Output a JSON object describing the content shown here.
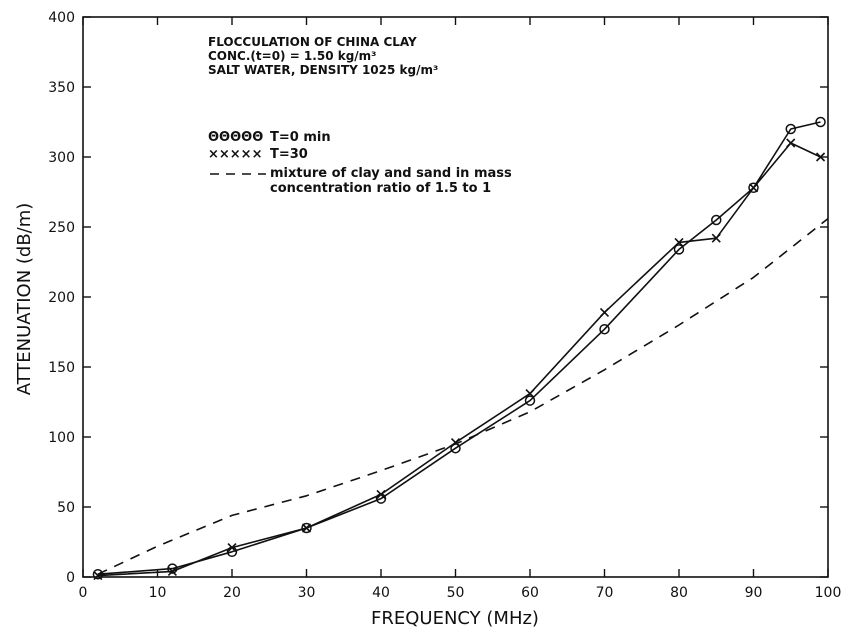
{
  "chart_data": {
    "type": "line",
    "xlabel": "FREQUENCY  (MHz)",
    "ylabel": "ATTENUATION  (dB/m)",
    "xlim": [
      0,
      100
    ],
    "ylim": [
      0,
      400
    ],
    "x_ticks": [
      0,
      10,
      20,
      30,
      40,
      50,
      60,
      70,
      80,
      90,
      100
    ],
    "y_ticks": [
      0,
      50,
      100,
      150,
      200,
      250,
      300,
      350,
      400
    ],
    "grid": false,
    "annotations": [
      "FLOCCULATION OF CHINA CLAY",
      "CONC.(t=0)  =  1.50  kg/m³",
      "SALT WATER, DENSITY 1025 kg/m³"
    ],
    "legend": [
      {
        "symbol": "ΘΘΘΘΘ",
        "label": "T=0    min"
      },
      {
        "symbol": "×××××",
        "label": "T=30"
      },
      {
        "symbol": "— —",
        "label": "mixture of clay and sand in mass",
        "label2": "concentration ratio of 1.5 to 1"
      }
    ],
    "series": [
      {
        "name": "T=0    min",
        "marker": "circle",
        "x": [
          2,
          12,
          20,
          30,
          40,
          50,
          60,
          70,
          80,
          85,
          90,
          95,
          99
        ],
        "y": [
          2,
          6,
          18,
          35,
          56,
          92,
          126,
          177,
          234,
          255,
          278,
          320,
          325
        ]
      },
      {
        "name": "T=30",
        "marker": "x",
        "x": [
          2,
          12,
          20,
          30,
          40,
          50,
          60,
          70,
          80,
          85,
          90,
          95,
          99
        ],
        "y": [
          1,
          4,
          21,
          35,
          59,
          96,
          131,
          189,
          239,
          242,
          278,
          310,
          300
        ]
      },
      {
        "name": "mixture of clay and sand in mass concentration ratio of 1.5 to 1",
        "marker": "none",
        "dashed": true,
        "x": [
          2,
          10,
          20,
          30,
          40,
          50,
          60,
          70,
          80,
          90,
          100
        ],
        "y": [
          2,
          22,
          44,
          58,
          76,
          95,
          118,
          148,
          180,
          214,
          256
        ]
      }
    ]
  }
}
